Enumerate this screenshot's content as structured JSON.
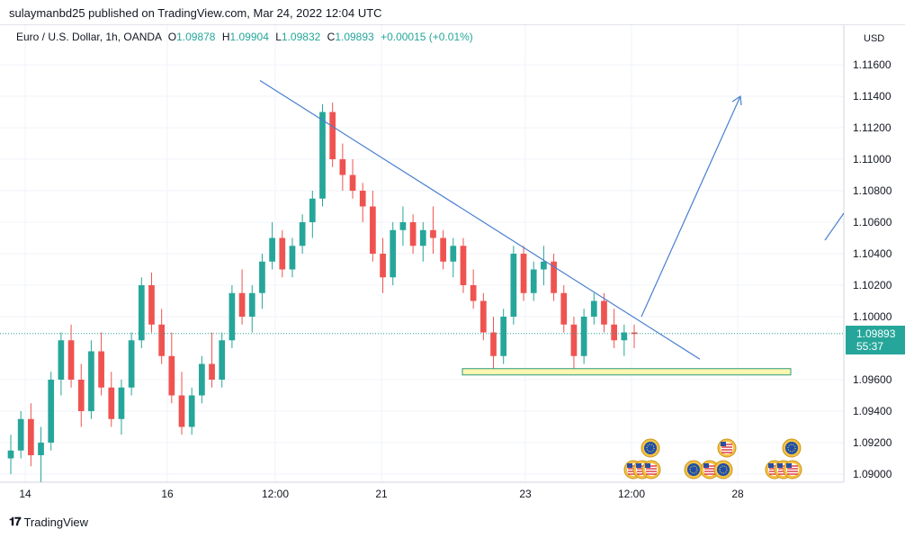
{
  "header": {
    "publisher": "sulaymanbd25 published on TradingView.com, Mar 24, 2022 12:04 UTC"
  },
  "symbol": {
    "name": "Euro / U.S. Dollar, 1h, OANDA",
    "open_label": "O",
    "open": "1.09878",
    "high_label": "H",
    "high": "1.09904",
    "low_label": "L",
    "low": "1.09832",
    "close_label": "C",
    "close": "1.09893",
    "change": "+0.00015 (+0.01%)"
  },
  "price_axis": {
    "currency": "USD",
    "current_price": "1.09893",
    "countdown": "55:37"
  },
  "footer": {
    "brand": "TradingView"
  },
  "colors": {
    "up": "#26a69a",
    "down": "#ef5350",
    "trendline": "#4a7fd0",
    "support_fill": "#fdf6b0",
    "support_border": "#2f9a7a"
  },
  "chart_data": {
    "type": "candlestick",
    "title": "Euro / U.S. Dollar, 1h, OANDA",
    "ylabel": "USD",
    "ylim": [
      1.0885,
      1.1185
    ],
    "yticks": [
      "1.11600",
      "1.11400",
      "1.11200",
      "1.11000",
      "1.10800",
      "1.10600",
      "1.10400",
      "1.10200",
      "1.10000",
      "1.09600",
      "1.09400",
      "1.09200",
      "1.09000"
    ],
    "xticks": [
      "14",
      "16",
      "12:00",
      "21",
      "23",
      "12:00",
      "28"
    ],
    "last_price": 1.09893,
    "key_levels": [
      {
        "name": "descending trendline",
        "from": {
          "bar": 0.27,
          "price": 1.115
        },
        "to": {
          "bar": 0.77,
          "price": 1.0973
        }
      },
      {
        "name": "support zone",
        "low": 1.0963,
        "high": 1.0967
      },
      {
        "name": "projected move",
        "from_price": 1.1,
        "to_price": 1.114
      }
    ],
    "candles_estimated": [
      [
        1.091,
        1.0925,
        1.09,
        1.0915
      ],
      [
        1.0915,
        1.094,
        1.091,
        1.0935
      ],
      [
        1.0935,
        1.0945,
        1.0905,
        1.0912
      ],
      [
        1.0912,
        1.093,
        1.0895,
        1.092
      ],
      [
        1.092,
        1.0965,
        1.0915,
        1.096
      ],
      [
        1.096,
        1.099,
        1.095,
        1.0985
      ],
      [
        1.0985,
        1.0995,
        1.0955,
        1.096
      ],
      [
        1.096,
        1.097,
        1.093,
        1.094
      ],
      [
        1.094,
        1.0985,
        1.0935,
        1.0978
      ],
      [
        1.0978,
        1.099,
        1.095,
        1.0955
      ],
      [
        1.0955,
        1.0965,
        1.093,
        1.0935
      ],
      [
        1.0935,
        1.096,
        1.0925,
        1.0955
      ],
      [
        1.0955,
        1.099,
        1.095,
        1.0985
      ],
      [
        1.0985,
        1.1025,
        1.098,
        1.102
      ],
      [
        1.102,
        1.1028,
        1.099,
        1.0995
      ],
      [
        1.0995,
        1.1005,
        1.097,
        1.0975
      ],
      [
        1.0975,
        1.099,
        1.0945,
        1.095
      ],
      [
        1.095,
        1.0965,
        1.0925,
        1.093
      ],
      [
        1.093,
        1.0955,
        1.0925,
        1.095
      ],
      [
        1.095,
        1.0975,
        1.0945,
        1.097
      ],
      [
        1.097,
        1.099,
        1.0955,
        1.096
      ],
      [
        1.096,
        1.099,
        1.0955,
        1.0985
      ],
      [
        1.0985,
        1.102,
        1.098,
        1.1015
      ],
      [
        1.1015,
        1.103,
        1.0995,
        1.1
      ],
      [
        1.1,
        1.102,
        1.099,
        1.1015
      ],
      [
        1.1015,
        1.104,
        1.1005,
        1.1035
      ],
      [
        1.1035,
        1.106,
        1.103,
        1.105
      ],
      [
        1.105,
        1.1055,
        1.1025,
        1.103
      ],
      [
        1.103,
        1.105,
        1.1025,
        1.1045
      ],
      [
        1.1045,
        1.1065,
        1.104,
        1.106
      ],
      [
        1.106,
        1.108,
        1.105,
        1.1075
      ],
      [
        1.1075,
        1.1135,
        1.107,
        1.113
      ],
      [
        1.113,
        1.1136,
        1.1095,
        1.11
      ],
      [
        1.11,
        1.111,
        1.108,
        1.109
      ],
      [
        1.109,
        1.11,
        1.1075,
        1.108
      ],
      [
        1.108,
        1.1085,
        1.106,
        1.107
      ],
      [
        1.107,
        1.108,
        1.1035,
        1.104
      ],
      [
        1.104,
        1.105,
        1.1015,
        1.1025
      ],
      [
        1.1025,
        1.106,
        1.102,
        1.1055
      ],
      [
        1.1055,
        1.107,
        1.1045,
        1.106
      ],
      [
        1.106,
        1.1065,
        1.104,
        1.1045
      ],
      [
        1.1045,
        1.106,
        1.1035,
        1.1055
      ],
      [
        1.1055,
        1.107,
        1.104,
        1.105
      ],
      [
        1.105,
        1.1055,
        1.103,
        1.1035
      ],
      [
        1.1035,
        1.105,
        1.1025,
        1.1045
      ],
      [
        1.1045,
        1.105,
        1.1015,
        1.102
      ],
      [
        1.102,
        1.103,
        1.1005,
        1.101
      ],
      [
        1.101,
        1.1015,
        1.0985,
        1.099
      ],
      [
        1.099,
        1.1,
        1.0965,
        1.0975
      ],
      [
        1.0975,
        1.1005,
        1.097,
        1.1
      ],
      [
        1.1,
        1.1045,
        1.0995,
        1.104
      ],
      [
        1.104,
        1.1045,
        1.101,
        1.1015
      ],
      [
        1.1015,
        1.1035,
        1.101,
        1.103
      ],
      [
        1.103,
        1.1045,
        1.102,
        1.1035
      ],
      [
        1.1035,
        1.104,
        1.101,
        1.1015
      ],
      [
        1.1015,
        1.102,
        1.099,
        1.0995
      ],
      [
        1.0995,
        1.1,
        1.0965,
        1.0975
      ],
      [
        1.0975,
        1.1005,
        1.097,
        1.1
      ],
      [
        1.1,
        1.1015,
        1.0995,
        1.101
      ],
      [
        1.101,
        1.1015,
        1.099,
        1.0995
      ],
      [
        1.0995,
        1.1005,
        1.098,
        1.0985
      ],
      [
        1.0985,
        1.0995,
        1.0975,
        1.099
      ],
      [
        1.099,
        1.0995,
        1.098,
        1.0989
      ]
    ]
  }
}
